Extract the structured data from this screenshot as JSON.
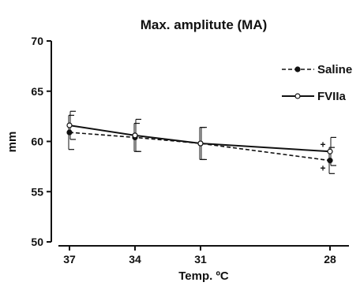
{
  "chart_data": {
    "type": "line",
    "title": "Max. amplitute  (MA)",
    "xlabel": "Temp. ºC",
    "ylabel": "mm",
    "categories": [
      "37",
      "34",
      "31",
      "28"
    ],
    "ylim": [
      50,
      70
    ],
    "yticks": [
      "50",
      "55",
      "60",
      "65",
      "70"
    ],
    "legend_position": "top-right",
    "grid": false,
    "series": [
      {
        "name": "Saline",
        "style": "dashed",
        "marker": "filled-circle",
        "values": [
          60.9,
          60.4,
          59.8,
          58.1
        ],
        "error": [
          1.7,
          1.4,
          1.6,
          1.3
        ]
      },
      {
        "name": "FVIIa",
        "style": "solid",
        "marker": "open-circle",
        "values": [
          61.6,
          60.6,
          59.8,
          59.0
        ],
        "error": [
          1.4,
          1.6,
          1.6,
          1.4
        ]
      }
    ],
    "annotations": [
      {
        "text": "+",
        "category": "28",
        "series": "FVIIa"
      },
      {
        "text": "+",
        "category": "28",
        "series": "Saline"
      }
    ]
  }
}
